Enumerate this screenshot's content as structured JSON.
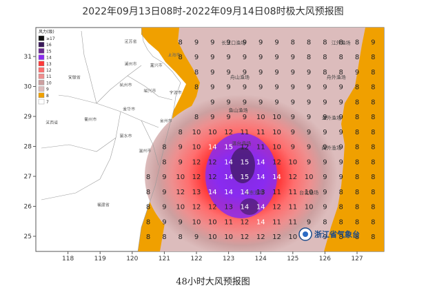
{
  "title": "2022年09月13日08时-2022年09月14日08时极大风预报图",
  "caption": "48小时大风预报图",
  "legend": {
    "title": "风力(级)",
    "levels": [
      {
        "label": "≥17",
        "color": "#111111"
      },
      {
        "label": "16",
        "color": "#3a1a5a"
      },
      {
        "label": "15",
        "color": "#6a2a90"
      },
      {
        "label": "14",
        "color": "#8a2bf0"
      },
      {
        "label": "13",
        "color": "#ff3a3a"
      },
      {
        "label": "12",
        "color": "#ff6e6e"
      },
      {
        "label": "11",
        "color": "#ee8f8f"
      },
      {
        "label": "10",
        "color": "#cca0a0"
      },
      {
        "label": "9",
        "color": "#dcbcbc"
      },
      {
        "label": "8",
        "color": "#f0a000"
      },
      {
        "label": "7",
        "color": "#ffffff"
      }
    ]
  },
  "axes": {
    "lon_ticks": [
      "118",
      "119",
      "120",
      "121",
      "122",
      "123",
      "124",
      "125",
      "126",
      "127"
    ],
    "lat_ticks": [
      "31",
      "30",
      "29",
      "28",
      "27",
      "26",
      "25"
    ]
  },
  "places": [
    {
      "name": "江苏省",
      "lon": 119.95,
      "lat": 31.45
    },
    {
      "name": "上海市",
      "lon": 121.3,
      "lat": 31.0
    },
    {
      "name": "湖州市",
      "lon": 119.95,
      "lat": 30.7
    },
    {
      "name": "嘉兴市",
      "lon": 120.75,
      "lat": 30.65
    },
    {
      "name": "安徽省",
      "lon": 118.2,
      "lat": 30.25
    },
    {
      "name": "杭州市",
      "lon": 119.8,
      "lat": 30.0
    },
    {
      "name": "绍兴市",
      "lon": 120.55,
      "lat": 29.8
    },
    {
      "name": "宁波市",
      "lon": 121.35,
      "lat": 29.75
    },
    {
      "name": "金华市",
      "lon": 119.9,
      "lat": 29.2
    },
    {
      "name": "衢州市",
      "lon": 118.7,
      "lat": 28.85
    },
    {
      "name": "台州市",
      "lon": 121.05,
      "lat": 28.8
    },
    {
      "name": "江西省",
      "lon": 117.5,
      "lat": 28.75
    },
    {
      "name": "丽水市",
      "lon": 119.8,
      "lat": 28.3
    },
    {
      "name": "温州市",
      "lon": 120.4,
      "lat": 27.8
    },
    {
      "name": "福建省",
      "lon": 119.1,
      "lat": 26.0
    }
  ],
  "sea_areas": [
    {
      "name": "长江口渔场",
      "lon": 123.15,
      "lat": 31.4
    },
    {
      "name": "江外渔场",
      "lon": 126.5,
      "lat": 31.4
    },
    {
      "name": "舟山渔场",
      "lon": 123.35,
      "lat": 30.25
    },
    {
      "name": "舟外渔场",
      "lon": 126.35,
      "lat": 30.25
    },
    {
      "name": "鱼山渔场",
      "lon": 123.3,
      "lat": 29.15
    },
    {
      "name": "温外渔场",
      "lon": 126.2,
      "lat": 28.9
    },
    {
      "name": "温台渔场",
      "lon": 123.4,
      "lat": 28.05
    },
    {
      "name": "闽外渔场",
      "lon": 126.2,
      "lat": 27.9
    },
    {
      "name": "闽东渔场",
      "lon": 123.8,
      "lat": 26.4
    },
    {
      "name": "台北渔场",
      "lon": 125.5,
      "lat": 26.4
    }
  ],
  "grid_lons": [
    120.5,
    121.0,
    121.5,
    122.0,
    122.5,
    123.0,
    123.5,
    124.0,
    124.5,
    125.0,
    125.5,
    126.0,
    126.5,
    127.0,
    127.5
  ],
  "grid_lats": [
    31.5,
    31.0,
    30.5,
    30.0,
    29.5,
    29.0,
    28.5,
    28.0,
    27.5,
    27.0,
    26.5,
    26.0,
    25.5,
    25.0
  ],
  "wind_grid": [
    [
      "",
      "",
      "8",
      "9",
      "9",
      "9",
      "9",
      "9",
      "9",
      "8",
      "8",
      "8",
      "8",
      "8",
      "9"
    ],
    [
      "",
      "",
      "8",
      "9",
      "9",
      "9",
      "9",
      "9",
      "9",
      "9",
      "8",
      "8",
      "8",
      "8",
      "8"
    ],
    [
      "",
      "",
      "",
      "8",
      "9",
      "9",
      "9",
      "9",
      "9",
      "9",
      "9",
      "8",
      "8",
      "9",
      "8"
    ],
    [
      "",
      "",
      "",
      "8",
      "9",
      "9",
      "9",
      "9",
      "9",
      "9",
      "9",
      "9",
      "9",
      "8",
      "8"
    ],
    [
      "",
      "",
      "",
      "",
      "9",
      "9",
      "9",
      "9",
      "9",
      "9",
      "9",
      "9",
      "9",
      "8",
      "8"
    ],
    [
      "",
      "",
      "",
      "8",
      "9",
      "9",
      "9",
      "10",
      "10",
      "9",
      "9",
      "9",
      "9",
      "8",
      "8"
    ],
    [
      "",
      "",
      "8",
      "10",
      "10",
      "12",
      "11",
      "11",
      "10",
      "9",
      "9",
      "9",
      "9",
      "8",
      "8"
    ],
    [
      "",
      "8",
      "9",
      "10",
      "14",
      "15",
      "12",
      "11",
      "10",
      "9",
      "9",
      "9",
      "9",
      "8",
      "8"
    ],
    [
      "",
      "8",
      "9",
      "12",
      "12",
      "14",
      "15",
      "14",
      "12",
      "10",
      "9",
      "9",
      "9",
      "8",
      "8"
    ],
    [
      "8",
      "9",
      "10",
      "12",
      "12",
      "14",
      "15",
      "14",
      "14",
      "12",
      "10",
      "9",
      "9",
      "8",
      "8"
    ],
    [
      "8",
      "9",
      "12",
      "13",
      "14",
      "14",
      "14",
      "13",
      "11",
      "11",
      "10",
      "9",
      "8",
      "8",
      "8"
    ],
    [
      "8",
      "9",
      "10",
      "12",
      "12",
      "13",
      "14",
      "14",
      "12",
      "11",
      "10",
      "9",
      "8",
      "8",
      "8"
    ],
    [
      "8",
      "9",
      "9",
      "10",
      "10",
      "11",
      "12",
      "14",
      "11",
      "11",
      "9",
      "8",
      "8",
      "8",
      "8"
    ],
    [
      "8",
      "8",
      "8",
      "9",
      "10",
      "10",
      "12",
      "12",
      "12",
      "10",
      "9",
      "9",
      "8",
      "8",
      "8"
    ]
  ],
  "logo": {
    "name": "浙江省气象台",
    "icon": "meteorological-logo-icon"
  }
}
